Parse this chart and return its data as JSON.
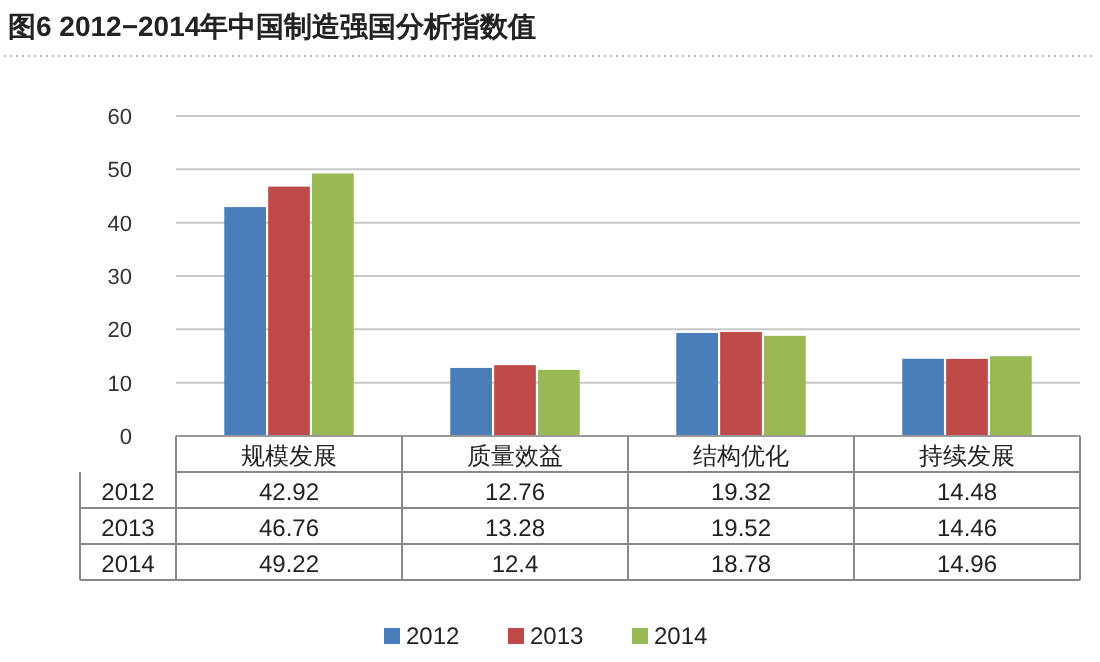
{
  "chart_data": {
    "type": "bar",
    "title": "图6 2012−2014年中国制造强国分析指数值",
    "categories": [
      "规模发展",
      "质量效益",
      "结构优化",
      "持续发展"
    ],
    "series": [
      {
        "name": "2012",
        "color": "#4a7ebb",
        "values": [
          42.92,
          12.76,
          19.32,
          14.48
        ]
      },
      {
        "name": "2013",
        "color": "#be4b48",
        "values": [
          46.76,
          13.28,
          19.52,
          14.46
        ]
      },
      {
        "name": "2014",
        "color": "#98b954",
        "values": [
          49.22,
          12.4,
          18.78,
          14.96
        ]
      }
    ],
    "ylim": [
      0,
      60
    ],
    "yticks": [
      0,
      10,
      20,
      30,
      40,
      50,
      60
    ],
    "grid": "y",
    "legend": "bottom",
    "data_labels": true
  }
}
